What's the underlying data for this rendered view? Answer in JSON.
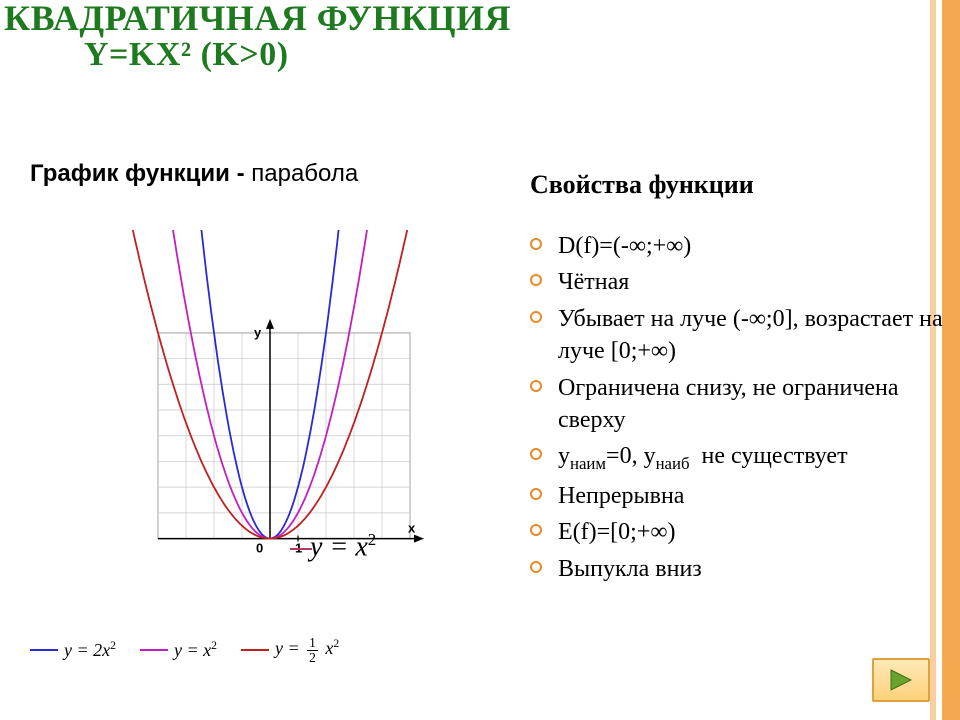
{
  "title": {
    "main": "КВАДРАТИЧНАЯ ФУНКЦИЯ",
    "sub": "Y=KX²  (K>0)",
    "color": "#1e7a1e",
    "fontsize_main": 36,
    "fontsize_sub": 34
  },
  "left": {
    "graph_label_bold": "График функции - ",
    "graph_label_rest": "парабола",
    "main_equation": "y = x²"
  },
  "right": {
    "header": "Свойства функции",
    "items": [
      "D(f)=(-∞;+∞)",
      "Чётная",
      "Убывает на луче (-∞;0], возрастает на луче [0;+∞)",
      "Ограничена снизу, не ограничена сверху",
      "yнаим=0, yнаиб  не существует",
      "Непрерывна",
      "E(f)=[0;+∞)",
      "Выпукла вниз"
    ],
    "bullet_color": "#e58b2a",
    "fontsize": 24
  },
  "chart": {
    "type": "line",
    "xlim": [
      -7.5,
      7.5
    ],
    "ylim": [
      -2,
      12
    ],
    "grid_box": {
      "xmin": -4,
      "xmax": 5,
      "ymin": 0,
      "ymax": 8,
      "step": 1
    },
    "axis_labels": {
      "x": "x",
      "y": "y",
      "origin": "0",
      "one": "1"
    },
    "grid_color": "#c8c8c8",
    "axis_color": "#000000",
    "background_color": "#ffffff",
    "line_width": 1.8,
    "series": [
      {
        "name": "y=2x^2",
        "k": 2.0,
        "color": "#2a2ad4"
      },
      {
        "name": "y=x^2",
        "k": 1.0,
        "color": "#c020c0"
      },
      {
        "name": "y=0.5x^2",
        "k": 0.5,
        "color": "#c02020"
      }
    ]
  },
  "legend": {
    "items": [
      {
        "color": "#2a2ad4",
        "text": "y = 2x²"
      },
      {
        "color": "#c020c0",
        "text": "y = x²"
      },
      {
        "color": "#c02020",
        "text": "y = ½ x²",
        "use_fraction": true,
        "numer": "1",
        "denom": "2"
      }
    ],
    "fontsize": 18
  },
  "decor": {
    "rail_color": "#f6a851",
    "rail_right_width": 18
  },
  "nav_button": {
    "label": "next",
    "border_color": "#dca33a",
    "fill_top": "#ffe9b8",
    "fill_bottom": "#fdd17a",
    "arrow_color": "#6aa22e"
  }
}
